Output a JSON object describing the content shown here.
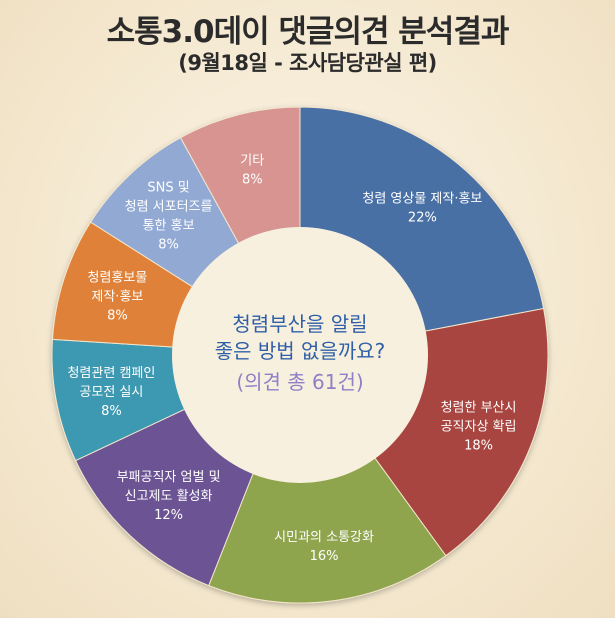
{
  "header": {
    "title": "소통3.0데이 댓글의견 분석결과",
    "subtitle": "(9월18일  -  조사담당관실 편)"
  },
  "chart_data": {
    "type": "pie",
    "variant": "donut",
    "center_question": [
      "청렴부산을 알릴",
      "좋은 방법 없을까요?"
    ],
    "center_count": "(의견 총 61건)",
    "slices": [
      {
        "lines": [
          "청렴 영상물 제작·홍보"
        ],
        "value": 22,
        "label": "22%",
        "color": "#4a6fa5"
      },
      {
        "lines": [
          "청렴한 부산시",
          "공직자상 확립"
        ],
        "value": 18,
        "label": "18%",
        "color": "#a8443f"
      },
      {
        "lines": [
          "시민과의 소통강화"
        ],
        "value": 16,
        "label": "16%",
        "color": "#8ea54e"
      },
      {
        "lines": [
          "부패공직자 엄벌 및",
          "신고제도 활성화"
        ],
        "value": 12,
        "label": "12%",
        "color": "#6c5393"
      },
      {
        "lines": [
          "청렴관련 캠페인",
          "공모전 실시"
        ],
        "value": 8,
        "label": "8%",
        "color": "#3d98b1"
      },
      {
        "lines": [
          "청렴홍보물",
          "제작·홍보"
        ],
        "value": 8,
        "label": "8%",
        "color": "#df8138"
      },
      {
        "lines": [
          "SNS 및",
          "청렴 서포터즈를",
          "통한 홍보"
        ],
        "value": 8,
        "label": "8%",
        "color": "#92a9d4"
      },
      {
        "lines": [
          "기타"
        ],
        "value": 8,
        "label": "8%",
        "color": "#d79491"
      }
    ]
  }
}
